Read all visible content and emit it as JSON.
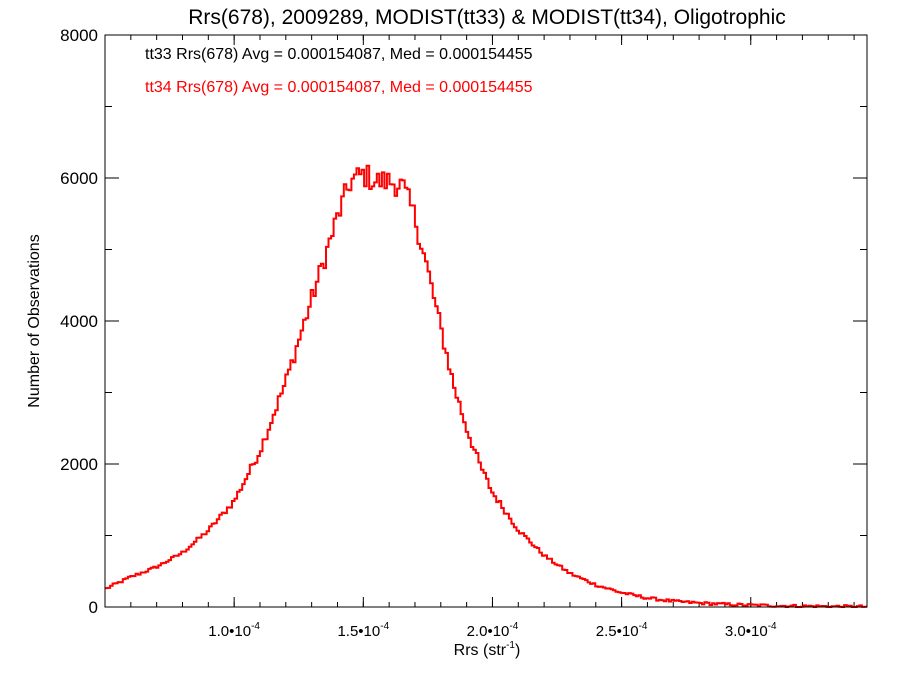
{
  "chart_data": {
    "type": "histogram",
    "title": "Rrs(678), 2009289, MODIST(tt33) & MODIST(tt34), Oligotrophic",
    "xlabel_base": "Rrs (str",
    "xlabel_sup": "-1",
    "xlabel_end": ")",
    "ylabel": "Number of Observations",
    "xlim": [
      5e-05,
      0.000345
    ],
    "ylim": [
      0,
      8000
    ],
    "x_ticks": [
      {
        "value": 0.0001,
        "mant": "1.0",
        "exp": "-4"
      },
      {
        "value": 0.00015,
        "mant": "1.5",
        "exp": "-4"
      },
      {
        "value": 0.0002,
        "mant": "2.0",
        "exp": "-4"
      },
      {
        "value": 0.00025,
        "mant": "2.5",
        "exp": "-4"
      },
      {
        "value": 0.0003,
        "mant": "3.0",
        "exp": "-4"
      }
    ],
    "x_minor_step": 1e-05,
    "y_ticks": [
      0,
      2000,
      4000,
      6000,
      8000
    ],
    "y_minor_step": 1000,
    "annotations": [
      {
        "text": "tt33 Rrs(678) Avg = 0.000154087, Med = 0.000154455",
        "color": "#000000"
      },
      {
        "text": "tt34 Rrs(678) Avg = 0.000154087, Med = 0.000154455",
        "color": "#ff0000"
      }
    ],
    "series": [
      {
        "color": "#ff0000",
        "profile": [
          [
            5e-05,
            250
          ],
          [
            6e-05,
            420
          ],
          [
            7e-05,
            560
          ],
          [
            8e-05,
            760
          ],
          [
            9e-05,
            1070
          ],
          [
            0.0001,
            1480
          ],
          [
            0.00011,
            2180
          ],
          [
            0.00012,
            3150
          ],
          [
            0.00013,
            4300
          ],
          [
            0.00014,
            5450
          ],
          [
            0.000145,
            5950
          ],
          [
            0.00015,
            6050
          ],
          [
            0.000155,
            5950
          ],
          [
            0.00016,
            5950
          ],
          [
            0.000165,
            5900
          ],
          [
            0.00017,
            5450
          ],
          [
            0.000175,
            4700
          ],
          [
            0.00018,
            3900
          ],
          [
            0.000185,
            3100
          ],
          [
            0.00019,
            2500
          ],
          [
            0.000195,
            2000
          ],
          [
            0.0002,
            1600
          ],
          [
            0.00021,
            1080
          ],
          [
            0.00022,
            720
          ],
          [
            0.00023,
            470
          ],
          [
            0.00024,
            310
          ],
          [
            0.00025,
            200
          ],
          [
            0.00026,
            125
          ],
          [
            0.00027,
            80
          ],
          [
            0.00028,
            55
          ],
          [
            0.00029,
            38
          ],
          [
            0.0003,
            26
          ],
          [
            0.00031,
            18
          ],
          [
            0.00032,
            12
          ],
          [
            0.00033,
            8
          ],
          [
            0.000345,
            5
          ]
        ]
      }
    ]
  }
}
